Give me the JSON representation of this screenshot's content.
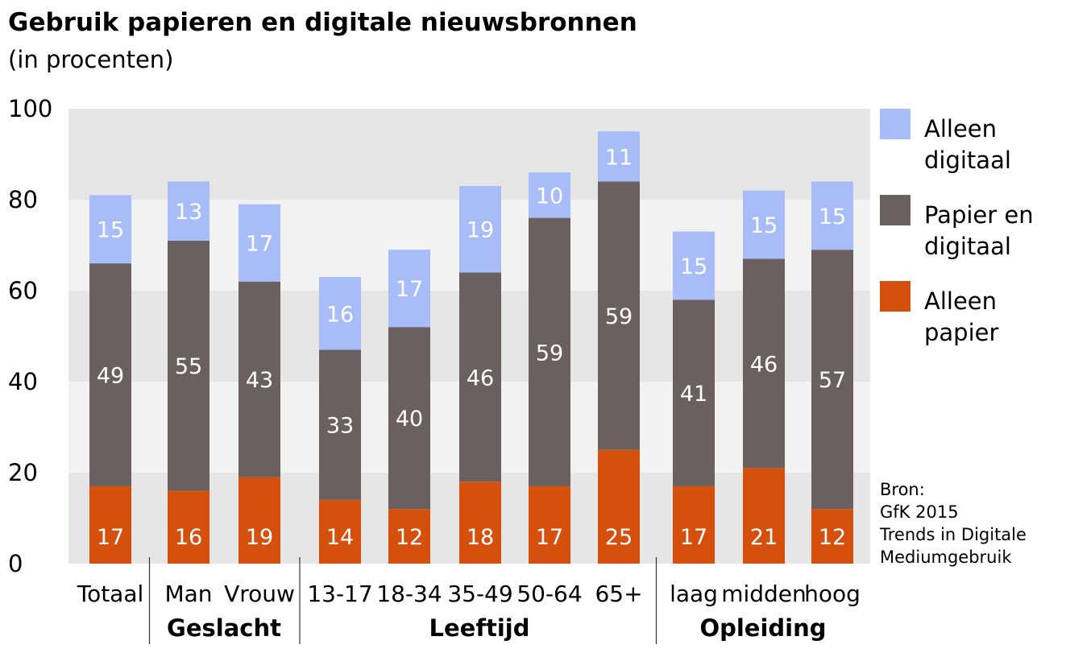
{
  "chart_data": {
    "type": "bar",
    "stacked": true,
    "title": "Gebruik papieren en digitale nieuwsbronnen",
    "subtitle": "(in procenten)",
    "ylim": [
      0,
      100
    ],
    "yticks": [
      0,
      20,
      40,
      60,
      80,
      100
    ],
    "categories": [
      "Totaal",
      "Man",
      "Vrouw",
      "13-17",
      "18-34",
      "35-49",
      "50-64",
      "65+",
      "laag",
      "midden",
      "hoog"
    ],
    "groups": [
      {
        "label": "",
        "start": 0,
        "end": 0
      },
      {
        "label": "Geslacht",
        "start": 1,
        "end": 2
      },
      {
        "label": "Leeftijd",
        "start": 3,
        "end": 7
      },
      {
        "label": "Opleiding",
        "start": 8,
        "end": 10
      }
    ],
    "series": [
      {
        "name": "Alleen papier",
        "color": "#d4500c",
        "values": [
          17,
          16,
          19,
          14,
          12,
          18,
          17,
          25,
          17,
          21,
          12
        ]
      },
      {
        "name": "Papier en digitaal",
        "color": "#6b6060",
        "values": [
          49,
          55,
          43,
          33,
          40,
          46,
          59,
          59,
          41,
          46,
          57
        ]
      },
      {
        "name": "Alleen digitaal",
        "color": "#a8bcf7",
        "values": [
          15,
          13,
          17,
          16,
          17,
          19,
          10,
          11,
          15,
          15,
          15
        ]
      }
    ],
    "legend": [
      {
        "line1": "Alleen",
        "line2": "digitaal",
        "color": "#a8bcf7"
      },
      {
        "line1": "Papier en",
        "line2": "digitaal",
        "color": "#6b6060"
      },
      {
        "line1": "Alleen",
        "line2": "papier",
        "color": "#d4500c"
      }
    ],
    "legend_position": "right",
    "source_lines": [
      "Bron:",
      "GfK 2015",
      "Trends in Digitale",
      "Mediumgebruik"
    ],
    "band_colors": [
      "#e6e6e6",
      "#f2f2f2"
    ]
  }
}
